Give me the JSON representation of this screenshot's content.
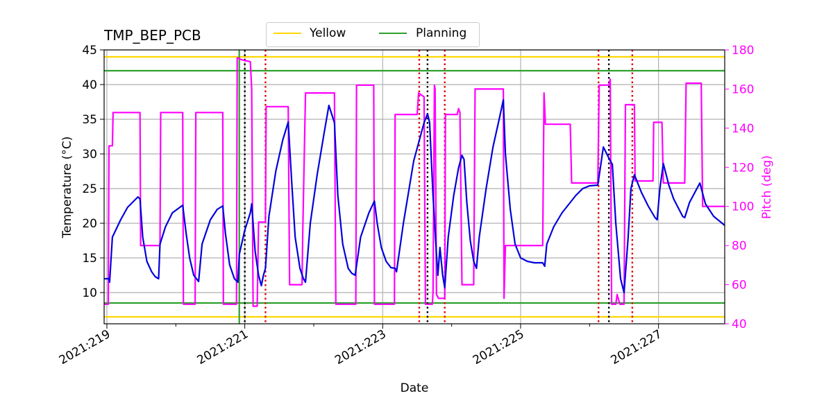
{
  "chart_data": {
    "type": "line",
    "title": "TMP_BEP_PCB",
    "xlabel": "Date",
    "ylabel_left": "Temperature ($^\\circ$C)",
    "ylabel_left_display": "Temperature (°C)",
    "ylabel_right": "Pitch (deg)",
    "x_range_days": [
      218.96,
      227.96
    ],
    "x_ticks": [
      {
        "value": 219,
        "label": "2021:219"
      },
      {
        "value": 221,
        "label": "2021:221"
      },
      {
        "value": 223,
        "label": "2021:223"
      },
      {
        "value": 225,
        "label": "2021:225"
      },
      {
        "value": 227,
        "label": "2021:227"
      }
    ],
    "y_left_range": [
      5.5,
      45
    ],
    "y_left_ticks": [
      10,
      15,
      20,
      25,
      30,
      35,
      40,
      45
    ],
    "y_right_range": [
      40,
      180
    ],
    "y_right_ticks": [
      40,
      60,
      80,
      100,
      120,
      140,
      160,
      180
    ],
    "grid": true,
    "legend": {
      "placement": "top-center",
      "entries": [
        {
          "name": "Yellow",
          "color": "#ffd700"
        },
        {
          "name": "Planning",
          "color": "#2ca02c"
        }
      ]
    },
    "limits": {
      "yellow": [
        6.5,
        44
      ],
      "planning": [
        8.5,
        42
      ]
    },
    "markers": {
      "green_vertical": [
        220.92
      ],
      "black_dotted": [
        221.0,
        223.65,
        226.28
      ],
      "red_dotted": [
        221.3,
        223.53,
        223.9,
        226.13,
        226.62
      ]
    },
    "series": [
      {
        "name": "Temperature",
        "axis": "left",
        "color": "#0000dd",
        "points": [
          [
            218.96,
            12
          ],
          [
            219.03,
            12
          ],
          [
            219.04,
            11.5
          ],
          [
            219.08,
            18
          ],
          [
            219.2,
            20.5
          ],
          [
            219.3,
            22.3
          ],
          [
            219.45,
            23.8
          ],
          [
            219.48,
            23.5
          ],
          [
            219.52,
            18
          ],
          [
            219.58,
            14.5
          ],
          [
            219.65,
            13
          ],
          [
            219.7,
            12.3
          ],
          [
            219.75,
            12
          ],
          [
            219.77,
            17
          ],
          [
            219.85,
            19.5
          ],
          [
            219.95,
            21.5
          ],
          [
            220.1,
            22.6
          ],
          [
            220.15,
            18.5
          ],
          [
            220.2,
            15
          ],
          [
            220.26,
            12.5
          ],
          [
            220.33,
            11.6
          ],
          [
            220.38,
            17
          ],
          [
            220.5,
            20.5
          ],
          [
            220.6,
            22
          ],
          [
            220.68,
            22.5
          ],
          [
            220.72,
            18.5
          ],
          [
            220.78,
            14
          ],
          [
            220.85,
            12
          ],
          [
            220.9,
            11.5
          ],
          [
            220.92,
            15.5
          ],
          [
            221.0,
            19
          ],
          [
            221.08,
            21.5
          ],
          [
            221.1,
            22.8
          ],
          [
            221.15,
            16
          ],
          [
            221.2,
            12.5
          ],
          [
            221.24,
            11
          ],
          [
            221.27,
            12.5
          ],
          [
            221.3,
            13.5
          ],
          [
            221.35,
            21
          ],
          [
            221.45,
            27.5
          ],
          [
            221.55,
            32
          ],
          [
            221.63,
            34.6
          ],
          [
            221.68,
            26
          ],
          [
            221.73,
            18
          ],
          [
            221.8,
            13.5
          ],
          [
            221.85,
            12
          ],
          [
            221.88,
            11.5
          ],
          [
            221.95,
            20
          ],
          [
            222.05,
            27
          ],
          [
            222.15,
            33
          ],
          [
            222.22,
            37
          ],
          [
            222.3,
            34.5
          ],
          [
            222.35,
            24
          ],
          [
            222.42,
            17
          ],
          [
            222.5,
            13.5
          ],
          [
            222.55,
            12.8
          ],
          [
            222.6,
            12.5
          ],
          [
            222.68,
            18
          ],
          [
            222.8,
            21.5
          ],
          [
            222.88,
            23.2
          ],
          [
            222.92,
            20
          ],
          [
            222.98,
            16.5
          ],
          [
            223.05,
            14.5
          ],
          [
            223.12,
            13.6
          ],
          [
            223.18,
            13.5
          ],
          [
            223.2,
            13
          ],
          [
            223.3,
            20
          ],
          [
            223.45,
            29
          ],
          [
            223.6,
            34.5
          ],
          [
            223.65,
            35.8
          ],
          [
            223.68,
            34.5
          ],
          [
            223.73,
            24
          ],
          [
            223.78,
            15.5
          ],
          [
            223.8,
            12.5
          ],
          [
            223.83,
            16.5
          ],
          [
            223.87,
            12.5
          ],
          [
            223.9,
            10.7
          ],
          [
            223.95,
            18
          ],
          [
            224.03,
            24
          ],
          [
            224.1,
            28
          ],
          [
            224.15,
            29.8
          ],
          [
            224.18,
            29.2
          ],
          [
            224.22,
            23
          ],
          [
            224.27,
            17.5
          ],
          [
            224.32,
            14.5
          ],
          [
            224.36,
            13.5
          ],
          [
            224.4,
            18
          ],
          [
            224.5,
            25
          ],
          [
            224.6,
            31
          ],
          [
            224.7,
            35.5
          ],
          [
            224.75,
            37.8
          ],
          [
            224.78,
            30
          ],
          [
            224.85,
            22
          ],
          [
            224.92,
            17
          ],
          [
            225.0,
            15
          ],
          [
            225.1,
            14.5
          ],
          [
            225.2,
            14.3
          ],
          [
            225.32,
            14.3
          ],
          [
            225.35,
            13.8
          ],
          [
            225.38,
            17
          ],
          [
            225.48,
            19.5
          ],
          [
            225.6,
            21.5
          ],
          [
            225.72,
            23
          ],
          [
            225.8,
            24
          ],
          [
            225.9,
            25
          ],
          [
            226.0,
            25.4
          ],
          [
            226.12,
            25.5
          ],
          [
            226.2,
            31
          ],
          [
            226.3,
            29
          ],
          [
            226.33,
            28.5
          ],
          [
            226.38,
            20
          ],
          [
            226.45,
            12
          ],
          [
            226.5,
            10
          ],
          [
            226.56,
            18
          ],
          [
            226.6,
            25
          ],
          [
            226.65,
            27
          ],
          [
            226.75,
            24.5
          ],
          [
            226.85,
            22.5
          ],
          [
            226.95,
            20.8
          ],
          [
            226.98,
            20.5
          ],
          [
            227.02,
            25
          ],
          [
            227.07,
            28.6
          ],
          [
            227.15,
            25.5
          ],
          [
            227.22,
            23.5
          ],
          [
            227.35,
            21
          ],
          [
            227.38,
            20.8
          ],
          [
            227.45,
            23
          ],
          [
            227.6,
            25.8
          ],
          [
            227.68,
            22.8
          ],
          [
            227.8,
            21
          ],
          [
            227.96,
            19.7
          ]
        ]
      },
      {
        "name": "Pitch",
        "axis": "right",
        "color": "#ff00ff",
        "points": [
          [
            218.96,
            50
          ],
          [
            219.02,
            50
          ],
          [
            219.03,
            131
          ],
          [
            219.08,
            131
          ],
          [
            219.09,
            148
          ],
          [
            219.48,
            148
          ],
          [
            219.49,
            80
          ],
          [
            219.77,
            80
          ],
          [
            219.78,
            148
          ],
          [
            220.1,
            148
          ],
          [
            220.11,
            50
          ],
          [
            220.28,
            50
          ],
          [
            220.29,
            148
          ],
          [
            220.68,
            148
          ],
          [
            220.69,
            50
          ],
          [
            220.88,
            50
          ],
          [
            220.89,
            176
          ],
          [
            220.95,
            175
          ],
          [
            221.08,
            174
          ],
          [
            221.1,
            160
          ],
          [
            221.12,
            49
          ],
          [
            221.18,
            49
          ],
          [
            221.2,
            92
          ],
          [
            221.3,
            92
          ],
          [
            221.31,
            151
          ],
          [
            221.63,
            151
          ],
          [
            221.65,
            60
          ],
          [
            221.83,
            60
          ],
          [
            221.84,
            86
          ],
          [
            221.88,
            158
          ],
          [
            222.3,
            158
          ],
          [
            222.32,
            50
          ],
          [
            222.61,
            50
          ],
          [
            222.62,
            162
          ],
          [
            222.87,
            162
          ],
          [
            222.88,
            50
          ],
          [
            223.17,
            50
          ],
          [
            223.18,
            147
          ],
          [
            223.5,
            147
          ],
          [
            223.52,
            158
          ],
          [
            223.6,
            156
          ],
          [
            223.62,
            50
          ],
          [
            223.72,
            50
          ],
          [
            223.73,
            56
          ],
          [
            223.75,
            162
          ],
          [
            223.76,
            160
          ],
          [
            223.78,
            55
          ],
          [
            223.81,
            53
          ],
          [
            223.85,
            53
          ],
          [
            223.9,
            53
          ],
          [
            223.91,
            147
          ],
          [
            224.08,
            147
          ],
          [
            224.1,
            150
          ],
          [
            224.12,
            148
          ],
          [
            224.15,
            60
          ],
          [
            224.32,
            60
          ],
          [
            224.34,
            160
          ],
          [
            224.75,
            160
          ],
          [
            224.76,
            53
          ],
          [
            224.78,
            80
          ],
          [
            225.32,
            80
          ],
          [
            225.34,
            158
          ],
          [
            225.36,
            142
          ],
          [
            225.72,
            142
          ],
          [
            225.74,
            112
          ],
          [
            226.12,
            112
          ],
          [
            226.14,
            162
          ],
          [
            226.28,
            162
          ],
          [
            226.3,
            165
          ],
          [
            226.32,
            50
          ],
          [
            226.38,
            50
          ],
          [
            226.4,
            55
          ],
          [
            226.44,
            50
          ],
          [
            226.5,
            50
          ],
          [
            226.52,
            152
          ],
          [
            226.65,
            152
          ],
          [
            226.66,
            113
          ],
          [
            226.92,
            113
          ],
          [
            226.93,
            143
          ],
          [
            227.05,
            143
          ],
          [
            227.07,
            112
          ],
          [
            227.38,
            112
          ],
          [
            227.4,
            163
          ],
          [
            227.62,
            163
          ],
          [
            227.64,
            100
          ],
          [
            227.96,
            100
          ]
        ]
      }
    ]
  }
}
